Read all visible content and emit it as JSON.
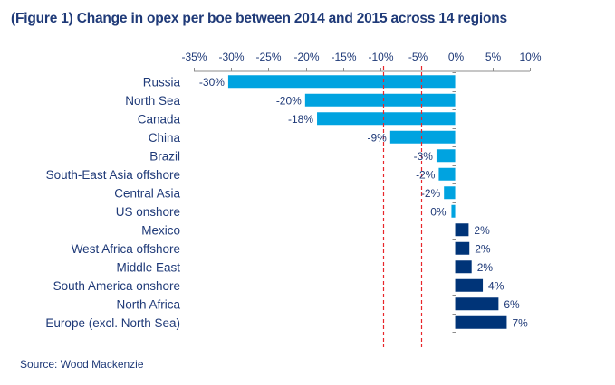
{
  "chart_data": {
    "type": "bar",
    "orientation": "horizontal",
    "title": "(Figure 1) Change in opex per boe between 2014 and 2015 across 14 regions",
    "source": "Source: Wood Mackenzie",
    "xlabel": "",
    "ylabel": "",
    "xlim": [
      -35,
      10
    ],
    "x_ticks": [
      -35,
      -30,
      -25,
      -20,
      -15,
      -10,
      -5,
      0,
      5,
      10
    ],
    "x_tick_labels": [
      "-35%",
      "-30%",
      "-25%",
      "-20%",
      "-15%",
      "-10%",
      "-5%",
      "0%",
      "5%",
      "10%"
    ],
    "x_axis_position": "top",
    "grid": false,
    "reference_lines": [
      {
        "value": -9.6,
        "style": "dashed",
        "color": "#e8262a"
      },
      {
        "value": -4.6,
        "style": "dashed",
        "color": "#e8262a"
      }
    ],
    "colors": {
      "negative": "#00a3e0",
      "positive": "#003478",
      "text": "#1f3a78",
      "axis": "#8c8c8c"
    },
    "categories": [
      "Russia",
      "North Sea",
      "Canada",
      "China",
      "Brazil",
      "South-East Asia offshore",
      "Central Asia",
      "US onshore",
      "Mexico",
      "West Africa offshore",
      "Middle East",
      "South America onshore",
      "North Africa",
      "Europe (excl. North Sea)"
    ],
    "values": [
      -30.4,
      -20.1,
      -18.5,
      -8.7,
      -2.5,
      -2.2,
      -1.5,
      -0.5,
      1.8,
      1.9,
      2.2,
      3.7,
      5.8,
      6.9
    ],
    "data_labels": [
      "-30%",
      "-20%",
      "-18%",
      "-9%",
      "-3%",
      "-2%",
      "-2%",
      "0%",
      "2%",
      "2%",
      "2%",
      "4%",
      "6%",
      "7%"
    ]
  }
}
